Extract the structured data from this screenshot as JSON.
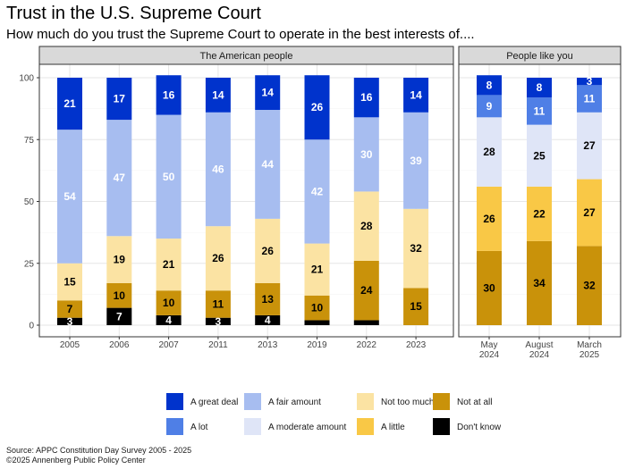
{
  "chart_data": {
    "type": "bar",
    "stacked": true,
    "title": "Trust in the U.S. Supreme Court",
    "subtitle": "How much do you trust the Supreme Court  to operate in the best interests of....",
    "ylim": [
      0,
      100
    ],
    "yticks": [
      "0",
      "25",
      "50",
      "75",
      "100"
    ],
    "colors": {
      "A great deal": "#0033cc",
      "A lot": "#4f7fe6",
      "A fair amount": "#a7bdf0",
      "A moderate amount": "#dfe5f7",
      "Not too much": "#fbe3a3",
      "A little": "#f9c846",
      "Not at all": "#c9920a",
      "Don't know": "#000000"
    },
    "legend": [
      [
        "A great deal",
        "A fair amount",
        "Not too much",
        "Not at all"
      ],
      [
        "A lot",
        "A moderate amount",
        "A little",
        "Don't know"
      ]
    ],
    "panels": [
      {
        "label": "The American people",
        "categories": [
          "2005",
          "2006",
          "2007",
          "2011",
          "2013",
          "2019",
          "2022",
          "2023"
        ],
        "series": [
          {
            "name": "Don't know",
            "values": [
              3,
              7,
              4,
              3,
              4,
              2,
              2,
              0
            ],
            "labels": [
              "3",
              "7",
              "4",
              "3",
              "4",
              "",
              "",
              ""
            ]
          },
          {
            "name": "Not at all",
            "values": [
              7,
              10,
              10,
              11,
              13,
              10,
              24,
              15
            ],
            "labels": [
              "7",
              "10",
              "10",
              "11",
              "13",
              "10",
              "24",
              "15"
            ]
          },
          {
            "name": "Not too much",
            "values": [
              15,
              19,
              21,
              26,
              26,
              21,
              28,
              32
            ],
            "labels": [
              "15",
              "19",
              "21",
              "26",
              "26",
              "21",
              "28",
              "32"
            ]
          },
          {
            "name": "A fair amount",
            "values": [
              54,
              47,
              50,
              46,
              44,
              42,
              30,
              39
            ],
            "labels": [
              "54",
              "47",
              "50",
              "46",
              "44",
              "42",
              "30",
              "39"
            ]
          },
          {
            "name": "A great deal",
            "values": [
              21,
              17,
              16,
              14,
              14,
              26,
              16,
              14
            ],
            "labels": [
              "21",
              "17",
              "16",
              "14",
              "14",
              "26",
              "16",
              "14"
            ]
          }
        ]
      },
      {
        "label": "People like you",
        "categories": [
          [
            "May",
            "2024"
          ],
          [
            "August",
            "2024"
          ],
          [
            "March",
            "2025"
          ]
        ],
        "series": [
          {
            "name": "Don't know",
            "values": [
              0,
              0,
              0
            ],
            "labels": [
              "",
              "",
              ""
            ]
          },
          {
            "name": "Not at all",
            "values": [
              30,
              34,
              32
            ],
            "labels": [
              "30",
              "34",
              "32"
            ]
          },
          {
            "name": "A little",
            "values": [
              26,
              22,
              27
            ],
            "labels": [
              "26",
              "22",
              "27"
            ]
          },
          {
            "name": "A moderate amount",
            "values": [
              28,
              25,
              27
            ],
            "labels": [
              "28",
              "25",
              "27"
            ]
          },
          {
            "name": "A lot",
            "values": [
              9,
              11,
              11
            ],
            "labels": [
              "9",
              "11",
              "11"
            ]
          },
          {
            "name": "A great deal",
            "values": [
              8,
              8,
              3
            ],
            "labels": [
              "8",
              "8",
              "3"
            ]
          }
        ]
      }
    ],
    "source": [
      "Source: APPC Constitution Day Survey 2005 - 2025",
      "©2025 Annenberg Public Policy Center"
    ]
  }
}
